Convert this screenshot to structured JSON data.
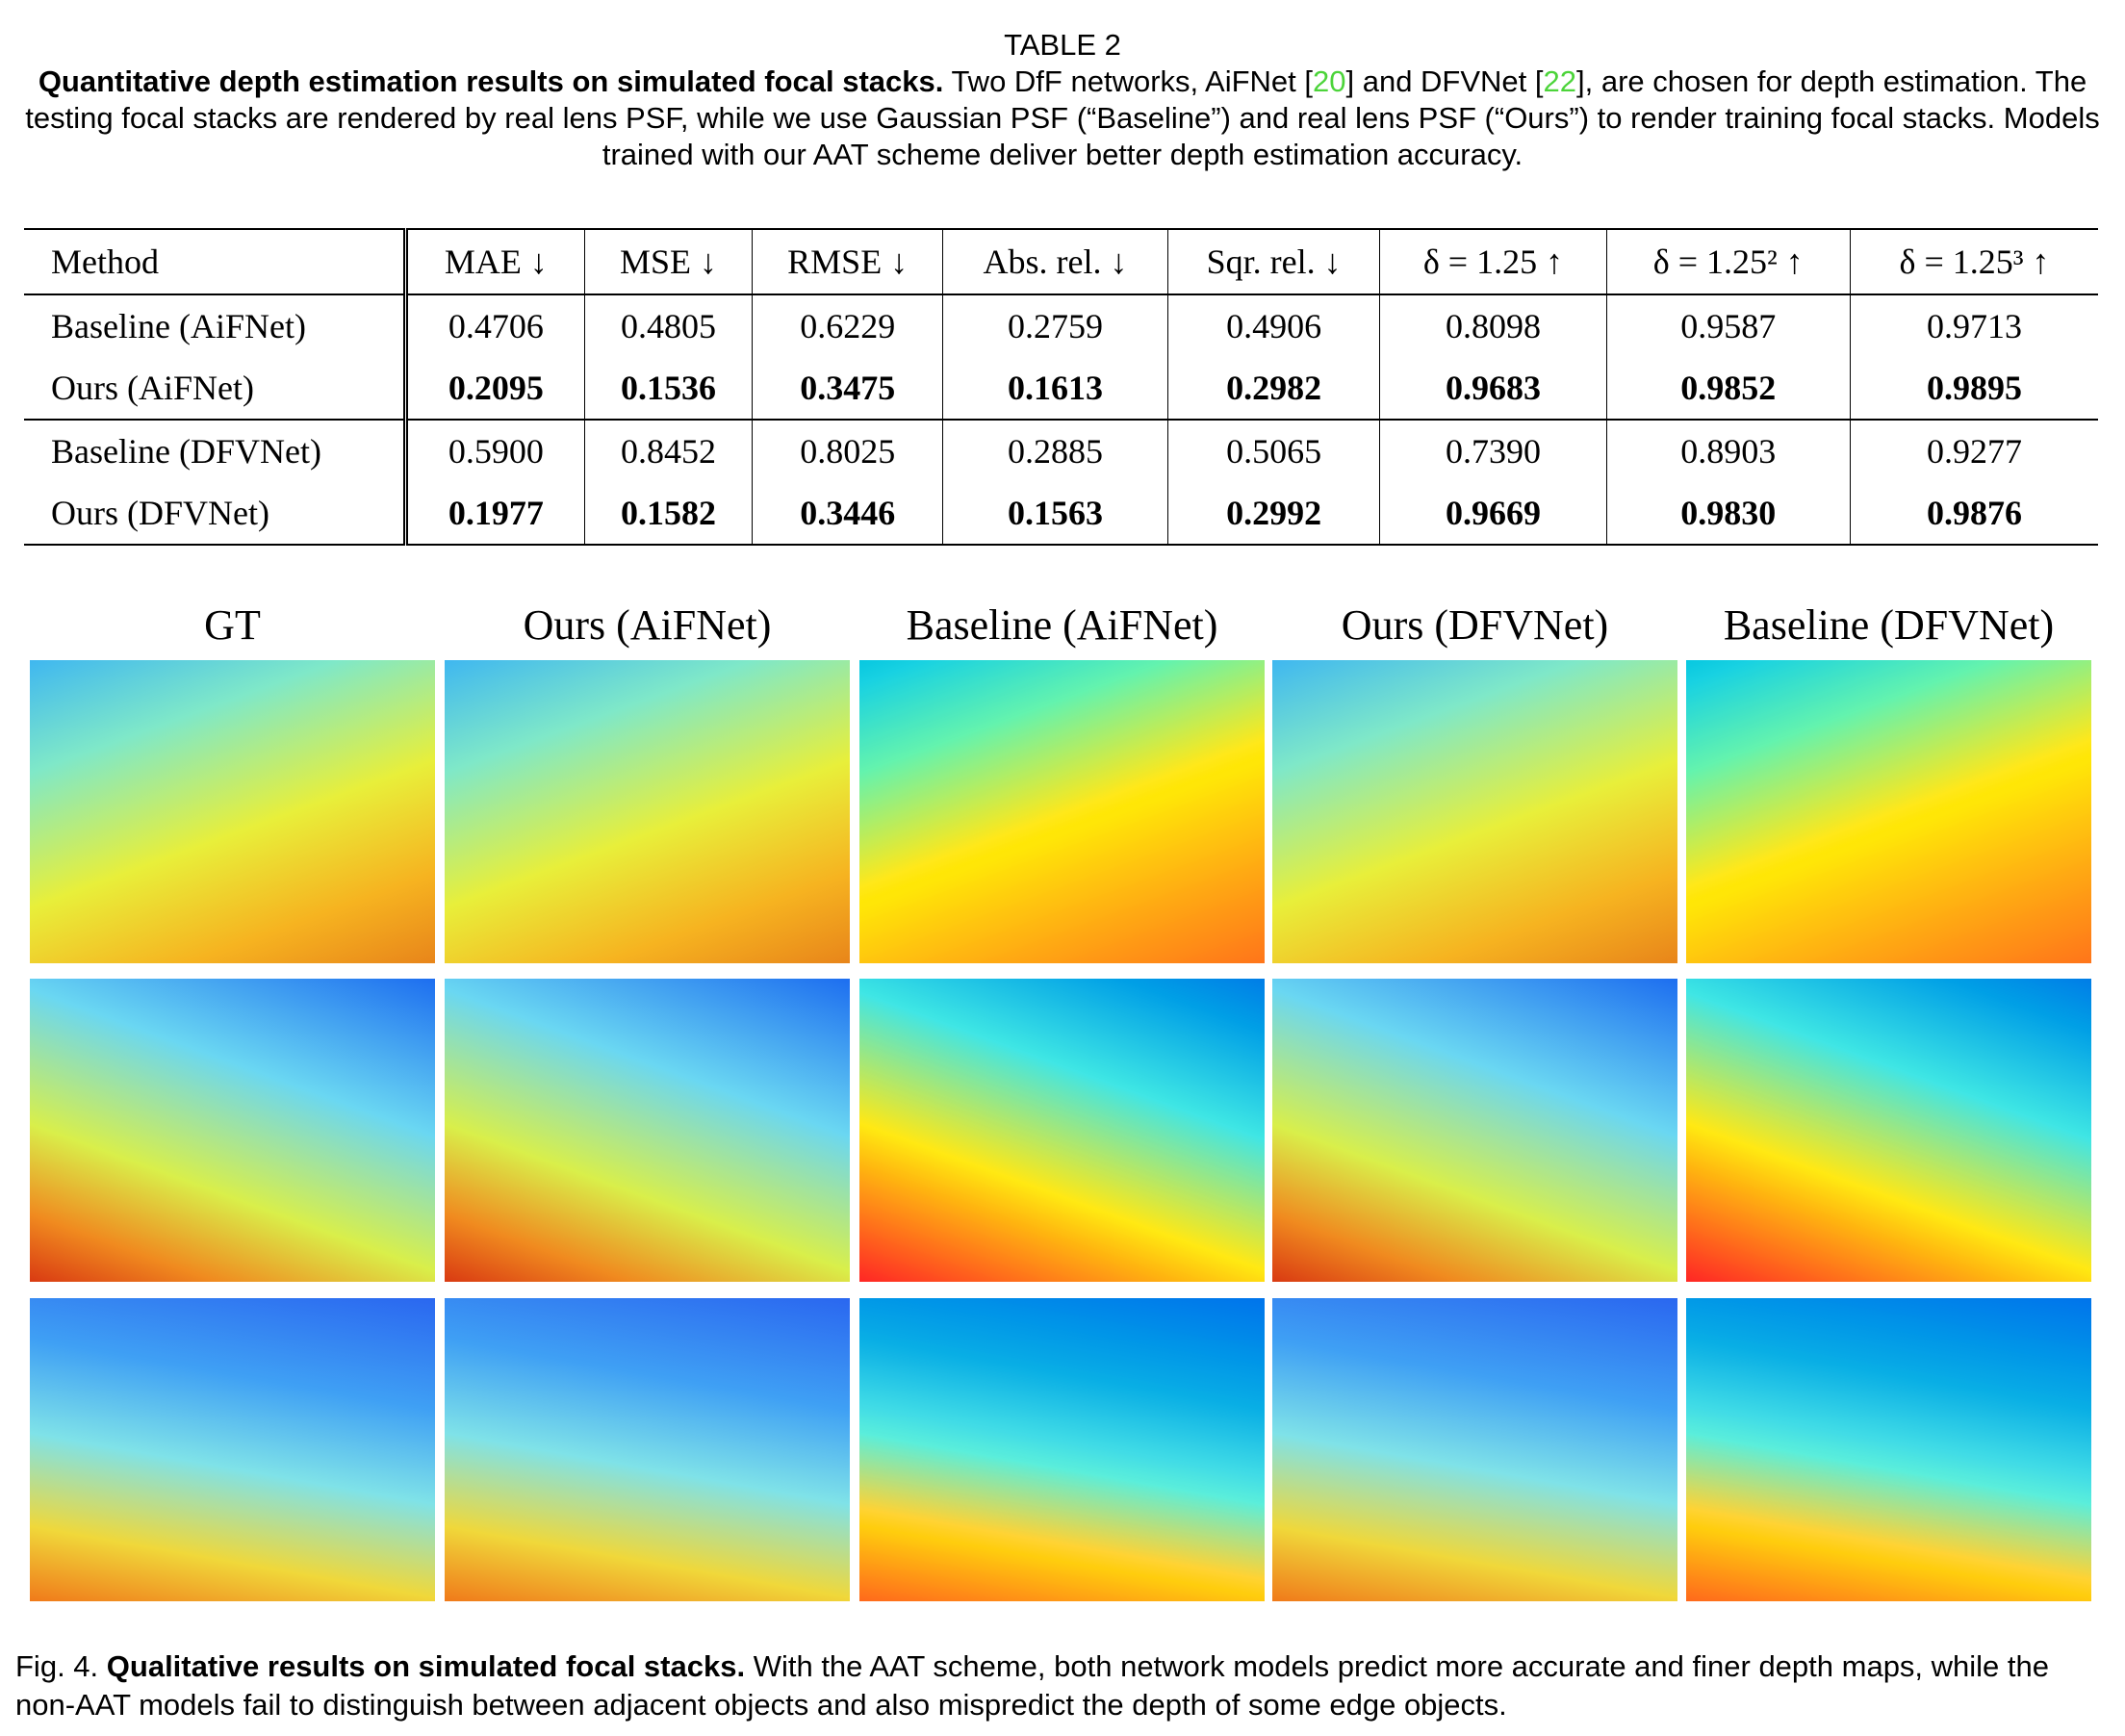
{
  "table_caption": {
    "label": "TABLE 2",
    "bold": "Quantitative depth estimation results on simulated focal stacks.",
    "segments": [
      "Two DfF networks, AiFNet [",
      "20",
      "] and DFVNet [",
      "22",
      "], are chosen for depth estimation. The testing focal stacks are rendered by real lens PSF, while we use Gaussian PSF (“Baseline”) and real lens PSF (“Ours”) to render training focal stacks. Models trained with our AAT scheme deliver better depth estimation accuracy."
    ]
  },
  "table": {
    "header": [
      "Method",
      "MAE ↓",
      "MSE ↓",
      "RMSE ↓",
      "Abs. rel. ↓",
      "Sqr. rel. ↓",
      "δ = 1.25 ↑",
      "δ = 1.25² ↑",
      "δ = 1.25³ ↑"
    ],
    "groups": [
      {
        "rows": [
          [
            "Baseline (AiFNet)",
            "0.4706",
            "0.4805",
            "0.6229",
            "0.2759",
            "0.4906",
            "0.8098",
            "0.9587",
            "0.9713"
          ],
          [
            "Ours (AiFNet)",
            "0.2095",
            "0.1536",
            "0.3475",
            "0.1613",
            "0.2982",
            "0.9683",
            "0.9852",
            "0.9895"
          ]
        ]
      },
      {
        "rows": [
          [
            "Baseline (DFVNet)",
            "0.5900",
            "0.8452",
            "0.8025",
            "0.2885",
            "0.5065",
            "0.7390",
            "0.8903",
            "0.9277"
          ],
          [
            "Ours (DFVNet)",
            "0.1977",
            "0.1582",
            "0.3446",
            "0.1563",
            "0.2992",
            "0.9669",
            "0.9830",
            "0.9876"
          ]
        ]
      }
    ]
  },
  "figure": {
    "column_titles": [
      "GT",
      "Ours (AiFNet)",
      "Baseline (AiFNet)",
      "Ours (DFVNet)",
      "Baseline (DFVNet)"
    ],
    "caption": {
      "label": "Fig. 4.",
      "bold": "Qualitative results on simulated focal stacks.",
      "text": "With the AAT scheme, both network models predict more accurate and finer depth maps, while the non-AAT models fail to distinguish between adjacent objects and also mispredict the depth of some edge objects."
    }
  }
}
